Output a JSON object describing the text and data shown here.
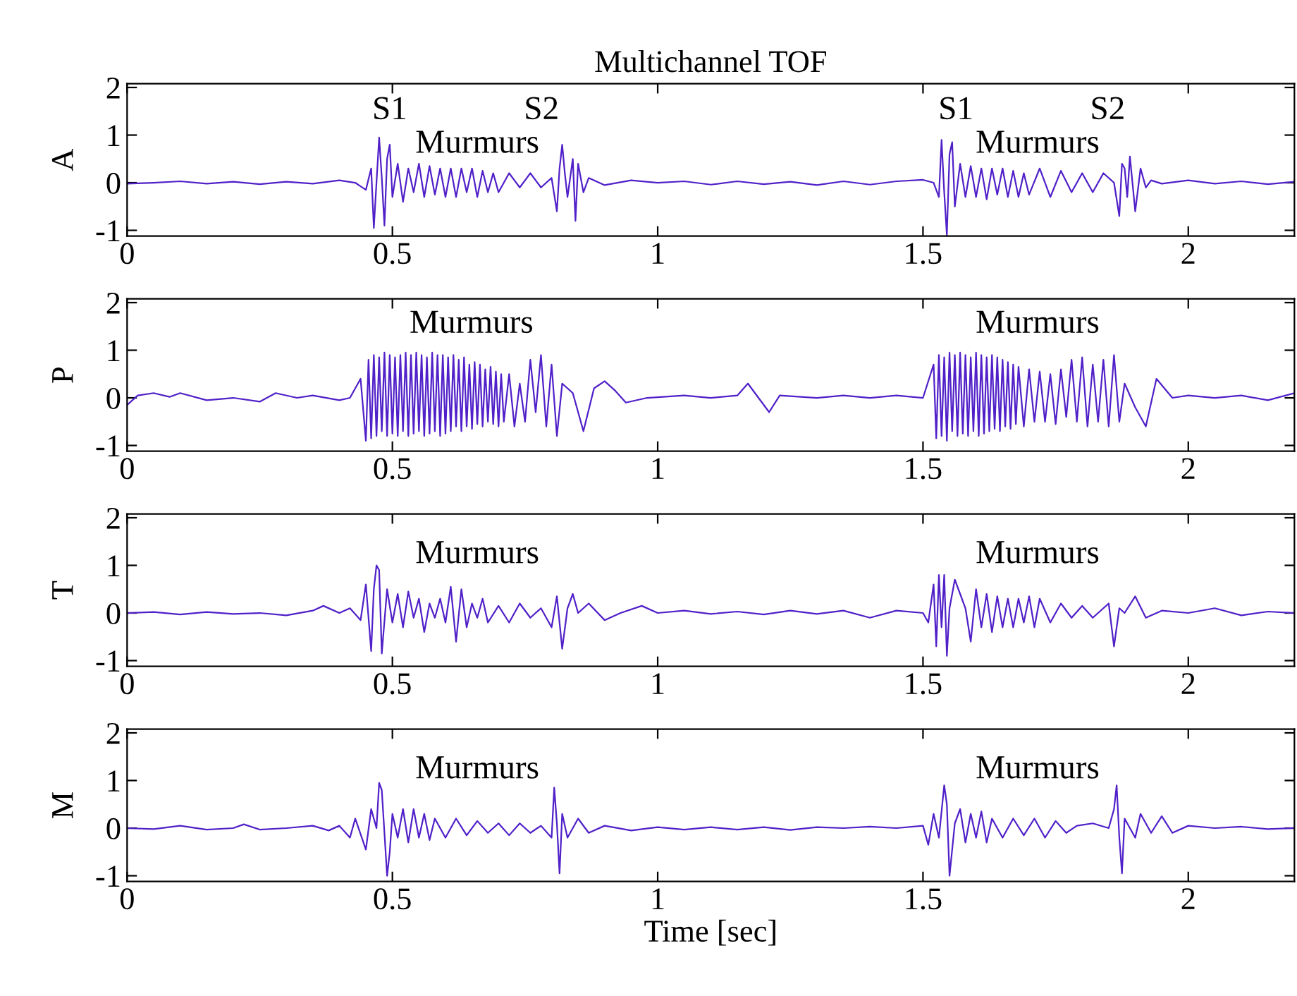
{
  "chart_data": [
    {
      "type": "line",
      "title": "Multichannel TOF",
      "ylabel": "A",
      "xlim": [
        0,
        2.2
      ],
      "ylim": [
        -1.12,
        2.08
      ],
      "xticks": [
        0,
        0.5,
        1,
        1.5,
        2
      ],
      "yticks": [
        -1,
        0,
        1,
        2
      ],
      "grid": false,
      "x": [
        0,
        0.05,
        0.1,
        0.15,
        0.2,
        0.25,
        0.3,
        0.35,
        0.4,
        0.43,
        0.45,
        0.46,
        0.465,
        0.47,
        0.475,
        0.48,
        0.485,
        0.49,
        0.495,
        0.5,
        0.51,
        0.52,
        0.53,
        0.54,
        0.55,
        0.56,
        0.57,
        0.58,
        0.59,
        0.6,
        0.61,
        0.62,
        0.63,
        0.64,
        0.65,
        0.66,
        0.67,
        0.68,
        0.69,
        0.7,
        0.72,
        0.74,
        0.76,
        0.78,
        0.8,
        0.81,
        0.815,
        0.82,
        0.825,
        0.83,
        0.84,
        0.845,
        0.85,
        0.86,
        0.87,
        0.9,
        0.95,
        1.0,
        1.05,
        1.1,
        1.15,
        1.2,
        1.25,
        1.3,
        1.35,
        1.4,
        1.45,
        1.5,
        1.52,
        1.53,
        1.535,
        1.54,
        1.545,
        1.55,
        1.555,
        1.56,
        1.57,
        1.58,
        1.59,
        1.6,
        1.61,
        1.62,
        1.63,
        1.64,
        1.65,
        1.66,
        1.67,
        1.68,
        1.69,
        1.7,
        1.72,
        1.74,
        1.76,
        1.78,
        1.8,
        1.82,
        1.84,
        1.86,
        1.87,
        1.875,
        1.88,
        1.885,
        1.89,
        1.9,
        1.91,
        1.92,
        1.93,
        1.95,
        2.0,
        2.05,
        2.1,
        2.15,
        2.2
      ],
      "series": [
        {
          "color": "#5020c8",
          "values": [
            -0.02,
            0.0,
            0.03,
            -0.02,
            0.02,
            -0.03,
            0.02,
            -0.02,
            0.05,
            0.0,
            -0.15,
            0.3,
            -0.95,
            0.0,
            0.95,
            0.1,
            -0.9,
            0.5,
            0.8,
            -0.3,
            0.4,
            -0.4,
            0.3,
            -0.2,
            0.4,
            -0.3,
            0.35,
            -0.25,
            0.3,
            -0.3,
            0.3,
            -0.3,
            0.3,
            -0.2,
            0.3,
            -0.3,
            0.25,
            -0.2,
            0.2,
            -0.2,
            0.2,
            -0.1,
            0.2,
            -0.1,
            0.1,
            -0.6,
            0.3,
            0.8,
            0.2,
            -0.3,
            0.5,
            -0.8,
            0.4,
            -0.2,
            0.1,
            -0.05,
            0.05,
            0.0,
            0.03,
            -0.04,
            0.03,
            -0.03,
            0.02,
            -0.05,
            0.03,
            -0.04,
            0.03,
            0.06,
            0.0,
            -0.3,
            0.9,
            -0.2,
            -1.1,
            0.6,
            0.85,
            -0.5,
            0.4,
            -0.3,
            0.35,
            -0.3,
            0.3,
            -0.35,
            0.3,
            -0.25,
            0.3,
            -0.3,
            0.25,
            -0.3,
            0.2,
            -0.25,
            0.3,
            -0.3,
            0.25,
            -0.2,
            0.2,
            -0.2,
            0.2,
            0.0,
            -0.7,
            0.4,
            0.3,
            -0.3,
            0.55,
            -0.6,
            0.3,
            -0.1,
            0.05,
            -0.02,
            0.05,
            -0.02,
            0.03,
            -0.03,
            0.02
          ]
        }
      ],
      "annotations": [
        "S1",
        "Murmurs",
        "S2",
        "S1",
        "Murmurs",
        "S2"
      ]
    },
    {
      "type": "line",
      "ylabel": "P",
      "xlim": [
        0,
        2.2
      ],
      "ylim": [
        -1.12,
        2.08
      ],
      "xticks": [
        0,
        0.5,
        1,
        1.5,
        2
      ],
      "yticks": [
        -1,
        0,
        1,
        2
      ],
      "grid": false,
      "x": [
        0,
        0.02,
        0.05,
        0.08,
        0.1,
        0.15,
        0.2,
        0.25,
        0.28,
        0.32,
        0.35,
        0.4,
        0.42,
        0.44,
        0.45,
        0.455,
        0.46,
        0.465,
        0.47,
        0.475,
        0.48,
        0.485,
        0.49,
        0.495,
        0.5,
        0.505,
        0.51,
        0.515,
        0.52,
        0.525,
        0.53,
        0.535,
        0.54,
        0.545,
        0.55,
        0.555,
        0.56,
        0.565,
        0.57,
        0.575,
        0.58,
        0.585,
        0.59,
        0.595,
        0.6,
        0.605,
        0.61,
        0.615,
        0.62,
        0.625,
        0.63,
        0.635,
        0.64,
        0.645,
        0.65,
        0.655,
        0.66,
        0.665,
        0.67,
        0.675,
        0.68,
        0.685,
        0.69,
        0.695,
        0.7,
        0.705,
        0.71,
        0.72,
        0.73,
        0.74,
        0.75,
        0.76,
        0.77,
        0.78,
        0.79,
        0.8,
        0.81,
        0.82,
        0.84,
        0.86,
        0.88,
        0.9,
        0.92,
        0.94,
        0.98,
        1.05,
        1.1,
        1.15,
        1.17,
        1.19,
        1.21,
        1.23,
        1.3,
        1.35,
        1.4,
        1.45,
        1.5,
        1.52,
        1.525,
        1.53,
        1.535,
        1.54,
        1.545,
        1.55,
        1.555,
        1.56,
        1.565,
        1.57,
        1.575,
        1.58,
        1.585,
        1.59,
        1.595,
        1.6,
        1.605,
        1.61,
        1.615,
        1.62,
        1.625,
        1.63,
        1.635,
        1.64,
        1.645,
        1.65,
        1.655,
        1.66,
        1.665,
        1.67,
        1.675,
        1.68,
        1.69,
        1.7,
        1.71,
        1.72,
        1.73,
        1.74,
        1.75,
        1.76,
        1.77,
        1.78,
        1.79,
        1.8,
        1.81,
        1.82,
        1.83,
        1.84,
        1.85,
        1.86,
        1.87,
        1.88,
        1.9,
        1.92,
        1.94,
        1.97,
        2.0,
        2.05,
        2.1,
        2.15,
        2.2
      ],
      "series": [
        {
          "color": "#5020c8",
          "values": [
            -0.15,
            0.05,
            0.1,
            0.02,
            0.1,
            -0.05,
            0.0,
            -0.08,
            0.1,
            0.0,
            0.05,
            -0.05,
            0.0,
            0.4,
            -0.9,
            0.8,
            -0.85,
            0.9,
            -0.8,
            0.85,
            -0.7,
            0.95,
            -0.8,
            0.9,
            -0.75,
            0.85,
            -0.8,
            0.9,
            -0.7,
            0.95,
            -0.8,
            0.9,
            -0.75,
            0.95,
            -0.7,
            0.9,
            -0.8,
            0.85,
            -0.75,
            0.95,
            -0.7,
            0.9,
            -0.8,
            0.9,
            -0.75,
            0.85,
            -0.7,
            0.9,
            -0.6,
            0.8,
            -0.7,
            0.85,
            -0.6,
            0.7,
            -0.65,
            0.75,
            -0.55,
            0.7,
            -0.6,
            0.6,
            -0.5,
            0.65,
            -0.55,
            0.55,
            -0.6,
            0.5,
            -0.5,
            0.5,
            -0.6,
            0.3,
            -0.5,
            0.8,
            -0.3,
            0.9,
            -0.6,
            0.7,
            -0.8,
            0.3,
            0.1,
            -0.7,
            0.2,
            0.35,
            0.15,
            -0.1,
            0.0,
            0.05,
            0.0,
            0.05,
            0.3,
            0.0,
            -0.3,
            0.05,
            0.0,
            0.05,
            0.0,
            0.05,
            0.0,
            0.7,
            -0.85,
            0.9,
            -0.8,
            0.85,
            -0.9,
            0.95,
            -0.7,
            0.9,
            -0.8,
            0.95,
            -0.75,
            0.9,
            -0.8,
            0.85,
            -0.7,
            0.95,
            -0.8,
            0.9,
            -0.75,
            0.85,
            -0.7,
            0.9,
            -0.65,
            0.85,
            -0.7,
            0.8,
            -0.6,
            0.75,
            -0.65,
            0.7,
            -0.55,
            0.65,
            -0.6,
            0.6,
            -0.5,
            0.55,
            -0.5,
            0.5,
            -0.55,
            0.6,
            -0.4,
            0.8,
            -0.5,
            0.85,
            -0.6,
            0.7,
            -0.5,
            0.8,
            -0.6,
            0.9,
            -0.5,
            0.3,
            -0.2,
            -0.6,
            0.4,
            0.0,
            0.05,
            0.0,
            0.05,
            -0.05,
            0.1
          ]
        }
      ],
      "annotations": [
        "Murmurs",
        "Murmurs"
      ]
    },
    {
      "type": "line",
      "ylabel": "T",
      "xlim": [
        0,
        2.2
      ],
      "ylim": [
        -1.12,
        2.08
      ],
      "xticks": [
        0,
        0.5,
        1,
        1.5,
        2
      ],
      "yticks": [
        -1,
        0,
        1,
        2
      ],
      "grid": false,
      "x": [
        0,
        0.05,
        0.1,
        0.15,
        0.2,
        0.25,
        0.3,
        0.35,
        0.37,
        0.4,
        0.42,
        0.44,
        0.45,
        0.46,
        0.465,
        0.47,
        0.475,
        0.48,
        0.49,
        0.5,
        0.51,
        0.52,
        0.53,
        0.54,
        0.55,
        0.56,
        0.57,
        0.58,
        0.59,
        0.6,
        0.61,
        0.62,
        0.63,
        0.64,
        0.65,
        0.66,
        0.67,
        0.68,
        0.7,
        0.72,
        0.74,
        0.76,
        0.78,
        0.8,
        0.81,
        0.82,
        0.83,
        0.84,
        0.85,
        0.87,
        0.9,
        0.93,
        0.97,
        1.0,
        1.05,
        1.1,
        1.15,
        1.2,
        1.25,
        1.3,
        1.35,
        1.4,
        1.45,
        1.5,
        1.51,
        1.52,
        1.525,
        1.53,
        1.535,
        1.54,
        1.545,
        1.55,
        1.56,
        1.57,
        1.58,
        1.59,
        1.6,
        1.61,
        1.62,
        1.63,
        1.64,
        1.65,
        1.66,
        1.67,
        1.68,
        1.69,
        1.7,
        1.71,
        1.72,
        1.74,
        1.76,
        1.78,
        1.8,
        1.82,
        1.84,
        1.85,
        1.86,
        1.87,
        1.88,
        1.9,
        1.92,
        1.95,
        2.0,
        2.05,
        2.1,
        2.15,
        2.2
      ],
      "series": [
        {
          "color": "#5020c8",
          "values": [
            0.0,
            0.02,
            -0.03,
            0.02,
            -0.02,
            0.0,
            -0.05,
            0.05,
            0.15,
            0.0,
            0.1,
            -0.15,
            0.6,
            -0.8,
            0.5,
            1.0,
            0.9,
            -0.85,
            0.5,
            -0.2,
            0.4,
            -0.3,
            0.45,
            -0.1,
            0.3,
            -0.4,
            0.2,
            -0.1,
            0.3,
            -0.2,
            0.55,
            -0.6,
            0.5,
            -0.3,
            0.2,
            -0.1,
            0.3,
            -0.2,
            0.15,
            -0.2,
            0.2,
            -0.1,
            0.1,
            -0.3,
            0.35,
            -0.75,
            0.1,
            0.4,
            0.0,
            0.2,
            -0.15,
            0.0,
            0.15,
            0.0,
            0.05,
            -0.02,
            0.03,
            -0.03,
            0.05,
            -0.02,
            0.05,
            -0.1,
            0.05,
            0.0,
            -0.2,
            0.6,
            -0.7,
            0.8,
            -0.3,
            0.8,
            -0.9,
            0.1,
            0.7,
            0.4,
            0.1,
            -0.6,
            0.5,
            -0.3,
            0.4,
            -0.4,
            0.35,
            -0.3,
            0.3,
            -0.3,
            0.3,
            -0.2,
            0.35,
            -0.3,
            0.3,
            -0.2,
            0.2,
            -0.1,
            0.15,
            -0.1,
            0.1,
            0.2,
            -0.7,
            0.1,
            0.0,
            0.35,
            -0.1,
            0.05,
            0.0,
            0.1,
            -0.05,
            0.03,
            0.0
          ]
        }
      ],
      "annotations": [
        "Murmurs",
        "Murmurs"
      ]
    },
    {
      "type": "line",
      "ylabel": "M",
      "xlabel": "Time [sec]",
      "xlim": [
        0,
        2.2
      ],
      "ylim": [
        -1.12,
        2.08
      ],
      "xticks": [
        0,
        0.5,
        1,
        1.5,
        2
      ],
      "yticks": [
        -1,
        0,
        1,
        2
      ],
      "grid": false,
      "x": [
        0,
        0.05,
        0.1,
        0.15,
        0.2,
        0.22,
        0.25,
        0.3,
        0.35,
        0.38,
        0.4,
        0.42,
        0.43,
        0.45,
        0.46,
        0.47,
        0.475,
        0.48,
        0.49,
        0.495,
        0.5,
        0.51,
        0.52,
        0.53,
        0.54,
        0.55,
        0.56,
        0.57,
        0.58,
        0.6,
        0.62,
        0.64,
        0.66,
        0.68,
        0.7,
        0.72,
        0.74,
        0.76,
        0.78,
        0.8,
        0.805,
        0.81,
        0.815,
        0.82,
        0.83,
        0.85,
        0.87,
        0.9,
        0.95,
        1.0,
        1.05,
        1.1,
        1.15,
        1.2,
        1.25,
        1.3,
        1.35,
        1.4,
        1.45,
        1.5,
        1.51,
        1.52,
        1.53,
        1.54,
        1.545,
        1.55,
        1.56,
        1.57,
        1.58,
        1.59,
        1.6,
        1.61,
        1.62,
        1.63,
        1.65,
        1.67,
        1.69,
        1.71,
        1.73,
        1.75,
        1.77,
        1.79,
        1.82,
        1.85,
        1.86,
        1.865,
        1.87,
        1.875,
        1.88,
        1.9,
        1.91,
        1.93,
        1.95,
        1.97,
        2.0,
        2.05,
        2.1,
        2.15,
        2.2
      ],
      "series": [
        {
          "color": "#5020c8",
          "values": [
            0.0,
            -0.02,
            0.05,
            -0.03,
            0.0,
            0.08,
            -0.03,
            0.0,
            0.05,
            -0.05,
            0.05,
            -0.2,
            0.2,
            -0.45,
            0.4,
            0.0,
            0.95,
            0.8,
            -1.0,
            -0.5,
            0.3,
            -0.2,
            0.4,
            -0.3,
            0.4,
            -0.2,
            0.3,
            -0.25,
            0.2,
            -0.2,
            0.2,
            -0.15,
            0.15,
            -0.1,
            0.1,
            -0.15,
            0.1,
            -0.1,
            0.05,
            -0.2,
            0.85,
            0.1,
            -0.95,
            0.3,
            -0.2,
            0.2,
            -0.1,
            0.05,
            -0.05,
            0.02,
            -0.03,
            0.02,
            -0.03,
            0.02,
            -0.04,
            0.02,
            0.0,
            0.03,
            0.0,
            0.05,
            -0.35,
            0.3,
            -0.2,
            0.9,
            0.5,
            -1.0,
            0.1,
            0.4,
            -0.3,
            0.3,
            -0.2,
            0.35,
            -0.3,
            0.2,
            -0.2,
            0.2,
            -0.15,
            0.2,
            -0.2,
            0.15,
            -0.1,
            0.05,
            0.1,
            0.0,
            0.4,
            0.9,
            -0.2,
            -0.95,
            0.2,
            -0.2,
            0.3,
            -0.1,
            0.25,
            -0.1,
            0.05,
            0.0,
            0.03,
            -0.02,
            0.0
          ]
        }
      ],
      "annotations": [
        "Murmurs",
        "Murmurs"
      ]
    }
  ]
}
